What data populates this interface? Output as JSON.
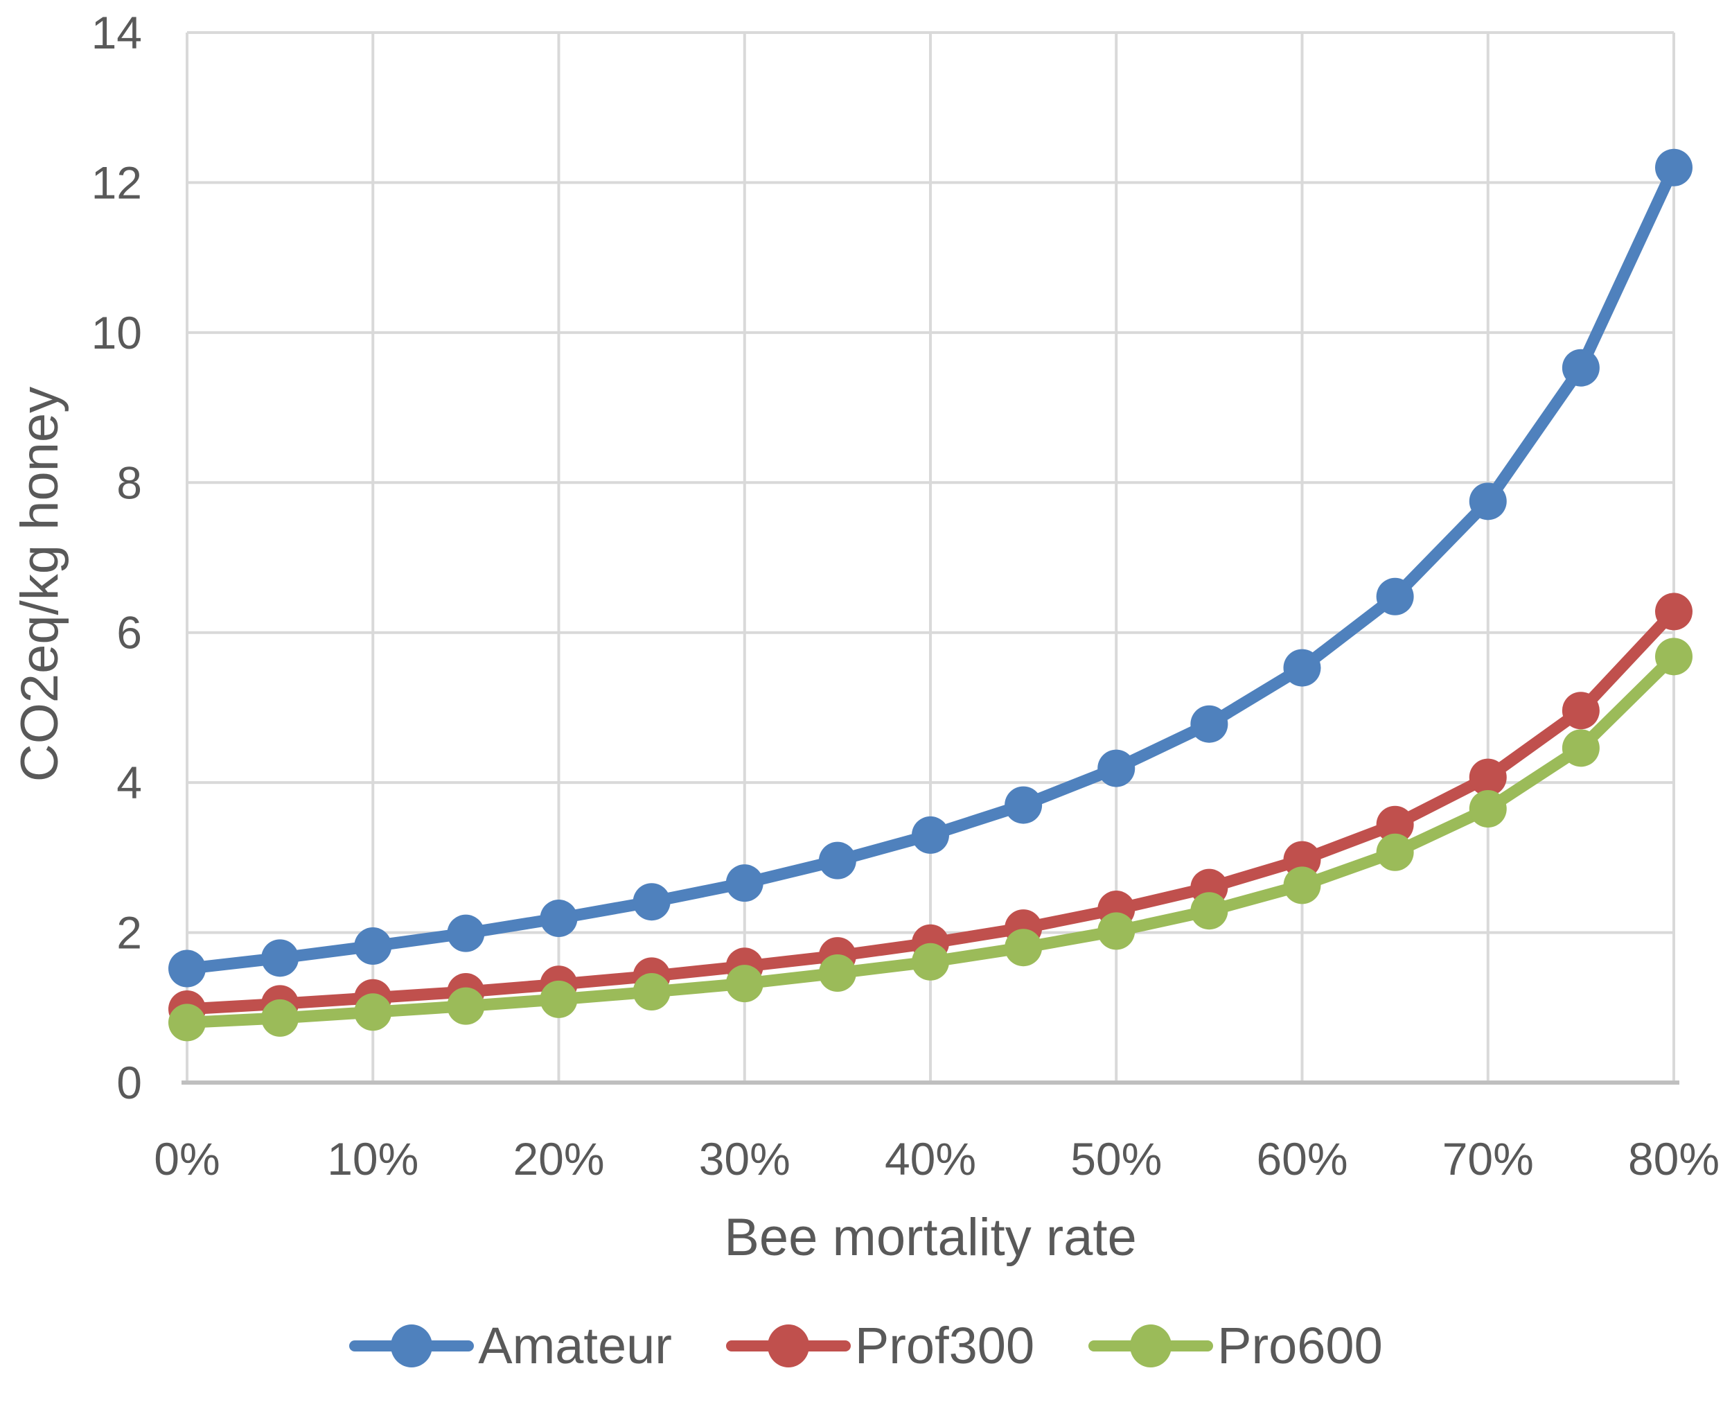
{
  "chart_data": {
    "type": "line",
    "title": "",
    "xlabel": "Bee mortality rate",
    "ylabel": "CO2eq/kg honey",
    "categories": [
      "0%",
      "5%",
      "10%",
      "15%",
      "20%",
      "25%",
      "30%",
      "35%",
      "40%",
      "45%",
      "50%",
      "55%",
      "60%",
      "65%",
      "70%",
      "75%",
      "80%"
    ],
    "x_tick_labels": [
      "0%",
      "10%",
      "20%",
      "30%",
      "40%",
      "50%",
      "60%",
      "70%",
      "80%"
    ],
    "y_ticks": [
      0,
      2,
      4,
      6,
      8,
      10,
      12,
      14
    ],
    "ylim": [
      0,
      14
    ],
    "grid": true,
    "legend_position": "bottom",
    "series": [
      {
        "name": "Amateur",
        "color": "#4F81BD",
        "values": [
          1.52,
          1.66,
          1.82,
          1.99,
          2.19,
          2.41,
          2.66,
          2.96,
          3.3,
          3.7,
          4.19,
          4.78,
          5.53,
          6.48,
          7.75,
          9.53,
          12.2
        ]
      },
      {
        "name": "Prof300",
        "color": "#C0504D",
        "values": [
          0.98,
          1.05,
          1.13,
          1.21,
          1.31,
          1.42,
          1.55,
          1.69,
          1.86,
          2.06,
          2.31,
          2.6,
          2.97,
          3.44,
          4.07,
          4.96,
          6.28
        ]
      },
      {
        "name": "Pro600",
        "color": "#9BBB59",
        "values": [
          0.8,
          0.86,
          0.94,
          1.02,
          1.11,
          1.21,
          1.32,
          1.46,
          1.61,
          1.8,
          2.02,
          2.29,
          2.63,
          3.07,
          3.65,
          4.46,
          5.68
        ]
      }
    ]
  },
  "colors": {
    "text": "#595959",
    "gridline": "#D9D9D9",
    "axis_line": "#BFBFBF",
    "background": "#FFFFFF"
  }
}
